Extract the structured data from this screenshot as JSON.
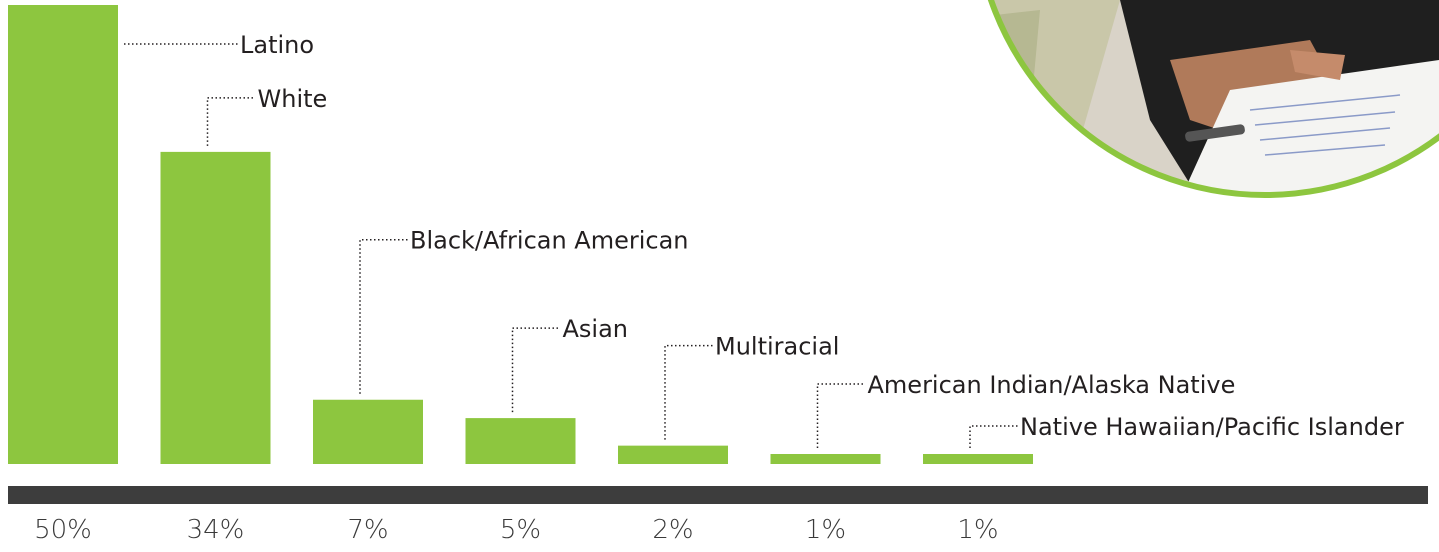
{
  "chart_data": {
    "type": "bar",
    "categories": [
      "Latino",
      "White",
      "Black/African American",
      "Asian",
      "Multiracial",
      "American Indian/Alaska Native",
      "Native Hawaiian/Pacific Islander"
    ],
    "values": [
      50,
      34,
      7,
      5,
      2,
      1,
      1
    ],
    "value_labels": [
      "50%",
      "34%",
      "7%",
      "5%",
      "2%",
      "1%",
      "1%"
    ],
    "ylim": [
      0,
      50
    ],
    "grid": false,
    "legend": "none"
  },
  "colors": {
    "bar": "#8dc63f",
    "baseline": "#3d3d3d",
    "leader_line": "#231f20",
    "text": "#231f20",
    "photo_border": "#8dc63f"
  },
  "photo": {
    "icon": "classroom-photo-icon"
  }
}
